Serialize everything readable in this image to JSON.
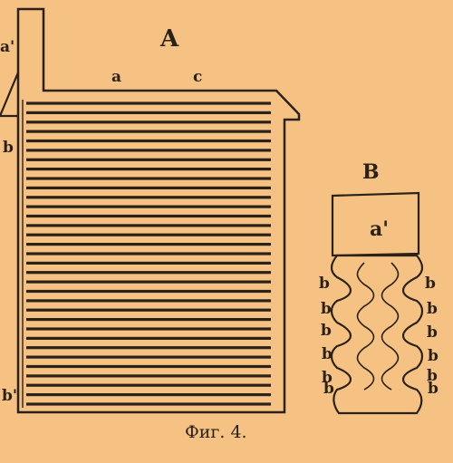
{
  "figure": {
    "caption": "Фиг. 4.",
    "colors": {
      "paper": "#f6c283",
      "ink": "#2a2218"
    }
  },
  "part_A": {
    "title": "A",
    "top_labels": [
      "a",
      "c"
    ],
    "left_labels": [
      "a'",
      "b",
      "b'"
    ],
    "plate_count": 33
  },
  "part_B": {
    "title": "B",
    "block_label": "a'",
    "left_labels": [
      "b",
      "b",
      "b",
      "b",
      "b",
      "b"
    ],
    "right_labels": [
      "b",
      "b",
      "b",
      "b",
      "b",
      "b"
    ]
  }
}
